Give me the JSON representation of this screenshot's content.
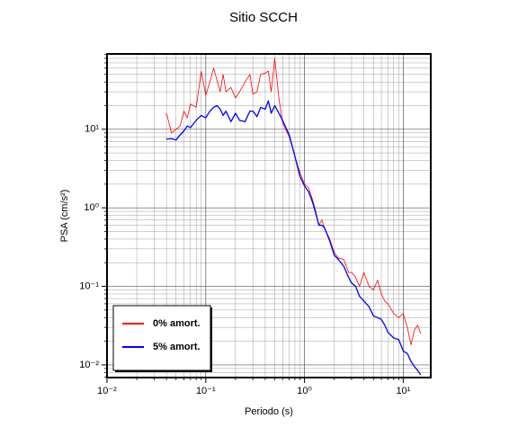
{
  "chart_data": {
    "type": "line",
    "title": "Sitio SCCH",
    "xlabel": "Periodo (s)",
    "ylabel": "PSA (cm/s²)",
    "xscale": "log",
    "yscale": "log",
    "xlim": [
      0.01,
      19
    ],
    "ylim": [
      0.0069,
      91
    ],
    "xticks": [
      {
        "value": 0.01,
        "label": "10⁻²"
      },
      {
        "value": 0.1,
        "label": "10⁻¹"
      },
      {
        "value": 1,
        "label": "10⁰"
      },
      {
        "value": 10,
        "label": "10¹"
      }
    ],
    "yticks": [
      {
        "value": 0.01,
        "label": "10⁻²"
      },
      {
        "value": 0.1,
        "label": "10⁻¹"
      },
      {
        "value": 1,
        "label": "10⁰"
      },
      {
        "value": 10,
        "label": "10¹"
      }
    ],
    "grid": true,
    "minor_grid": true,
    "legend": "lower left",
    "x": [
      0.04,
      0.045,
      0.05,
      0.055,
      0.06,
      0.065,
      0.07,
      0.08,
      0.09,
      0.1,
      0.11,
      0.12,
      0.13,
      0.14,
      0.15,
      0.16,
      0.18,
      0.2,
      0.22,
      0.25,
      0.28,
      0.3,
      0.33,
      0.36,
      0.4,
      0.43,
      0.46,
      0.5,
      0.55,
      0.6,
      0.7,
      0.8,
      0.9,
      1.0,
      1.1,
      1.2,
      1.3,
      1.4,
      1.5,
      1.6,
      1.8,
      2.0,
      2.2,
      2.5,
      2.8,
      3.0,
      3.3,
      3.6,
      4.0,
      4.5,
      5,
      5.5,
      6,
      6.5,
      7,
      8,
      9,
      10,
      11,
      12,
      13,
      14,
      15
    ],
    "series": [
      {
        "name": "0% amort.",
        "color": "#ff0000",
        "width": 0.8,
        "values": [
          16,
          9,
          10,
          11,
          17,
          14,
          21,
          19,
          55,
          27,
          40,
          60,
          42,
          30,
          50,
          30,
          34,
          25,
          30,
          40,
          50,
          28,
          30,
          50,
          52,
          55,
          30,
          80,
          25,
          12,
          8,
          4.5,
          2.8,
          2.0,
          1.8,
          1.3,
          0.9,
          0.6,
          0.7,
          0.55,
          0.4,
          0.27,
          0.23,
          0.22,
          0.15,
          0.15,
          0.13,
          0.1,
          0.15,
          0.1,
          0.09,
          0.12,
          0.08,
          0.065,
          0.06,
          0.045,
          0.04,
          0.045,
          0.03,
          0.018,
          0.028,
          0.032,
          0.025
        ]
      },
      {
        "name": "5% amort.",
        "color": "#0000ff",
        "width": 1.3,
        "values": [
          7.5,
          7.6,
          7.3,
          8.5,
          9.5,
          11,
          10.5,
          13,
          15,
          14,
          17,
          19,
          20,
          18,
          15,
          17,
          12.5,
          16,
          13,
          12.5,
          17,
          17,
          14.5,
          19,
          18,
          23,
          16,
          20,
          16,
          13,
          8.5,
          4.5,
          2.5,
          1.9,
          1.6,
          1.2,
          0.85,
          0.6,
          0.6,
          0.55,
          0.38,
          0.25,
          0.22,
          0.18,
          0.13,
          0.11,
          0.1,
          0.075,
          0.065,
          0.055,
          0.042,
          0.04,
          0.038,
          0.032,
          0.026,
          0.022,
          0.021,
          0.015,
          0.014,
          0.011,
          0.0095,
          0.0085,
          0.0075
        ]
      }
    ]
  }
}
